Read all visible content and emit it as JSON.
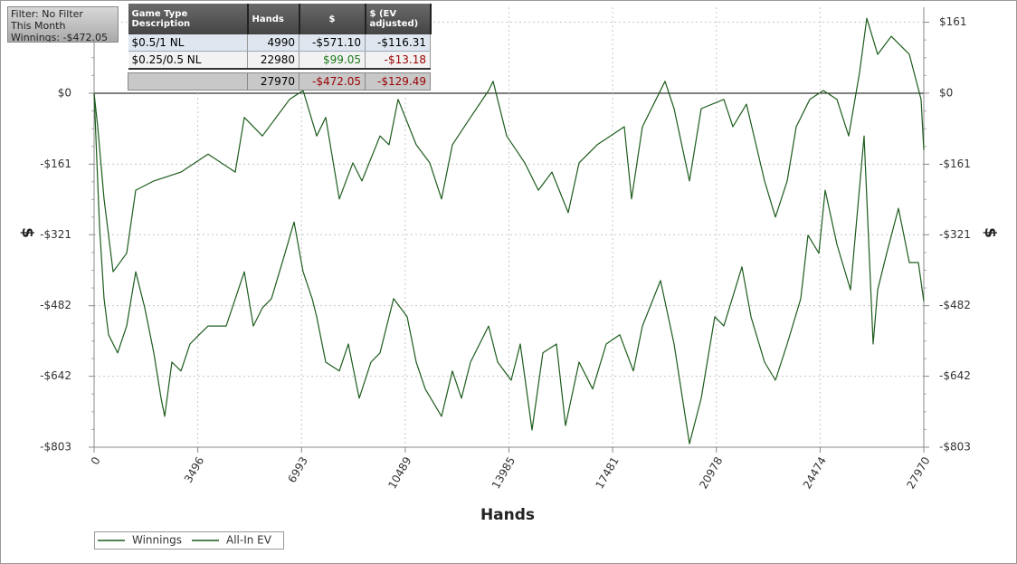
{
  "filter_box": {
    "lines": [
      "Filter: No Filter",
      "This Month",
      "Winnings: -$472.05"
    ]
  },
  "table": {
    "columns": [
      "Game Type Description",
      "Hands",
      "$",
      "$ (EV adjusted)"
    ],
    "rows": [
      [
        "$0.5/1 NL",
        "4990",
        "-$571.10",
        "-$116.31"
      ],
      [
        "$0.25/0.5 NL",
        "22980",
        "$99.05",
        "-$13.18"
      ]
    ],
    "total": [
      "27970",
      "-$472.05",
      "-$129.49"
    ]
  },
  "chart_data": {
    "type": "line",
    "x_label": "Hands",
    "y_label": "$",
    "y2_label": "$",
    "grid": true,
    "legend": "bottom-left",
    "xlim": [
      0,
      27970
    ],
    "xticks": [
      0,
      3496,
      6993,
      10489,
      13985,
      17481,
      20978,
      24474,
      27970
    ],
    "ylim": [
      -803,
      195
    ],
    "yticks": [
      {
        "value": -803,
        "label": "-$803"
      },
      {
        "value": -642,
        "label": "-$642"
      },
      {
        "value": -482,
        "label": "-$482"
      },
      {
        "value": -321,
        "label": "-$321"
      },
      {
        "value": -161,
        "label": "-$161"
      },
      {
        "value": 0,
        "label": "$0"
      },
      {
        "value": 161,
        "label": "$161"
      }
    ],
    "series": [
      {
        "name": "Winnings",
        "color": "#1c5c1c",
        "x": [
          0,
          183,
          336,
          488,
          793,
          1098,
          1403,
          1708,
          2013,
          2257,
          2379,
          2623,
          2928,
          3233,
          3538,
          3843,
          4453,
          5063,
          5368,
          5673,
          5978,
          6436,
          6741,
          7046,
          7351,
          7504,
          7809,
          8266,
          8571,
          8937,
          9334,
          9639,
          10096,
          10554,
          10859,
          11164,
          11713,
          12079,
          12384,
          12689,
          13299,
          13604,
          14061,
          14366,
          14763,
          15129,
          15586,
          15891,
          16349,
          16806,
          17264,
          17721,
          18179,
          18484,
          19094,
          19552,
          20070,
          20467,
          20924,
          21229,
          21839,
          22144,
          22602,
          22968,
          23364,
          23822,
          24066,
          24432,
          24646,
          25042,
          25500,
          25957,
          26262,
          26414,
          26719,
          27116,
          27482,
          27787,
          27970
        ],
        "values": [
          0,
          -302,
          -466,
          -548,
          -589,
          -528,
          -405,
          -487,
          -589,
          -692,
          -733,
          -610,
          -630,
          -569,
          -548,
          -528,
          -528,
          -405,
          -528,
          -487,
          -466,
          -363,
          -292,
          -405,
          -466,
          -507,
          -610,
          -630,
          -569,
          -692,
          -610,
          -589,
          -466,
          -507,
          -610,
          -671,
          -733,
          -630,
          -692,
          -610,
          -528,
          -610,
          -651,
          -569,
          -764,
          -589,
          -569,
          -754,
          -610,
          -671,
          -569,
          -548,
          -630,
          -528,
          -425,
          -569,
          -795,
          -692,
          -507,
          -528,
          -394,
          -507,
          -610,
          -651,
          -569,
          -466,
          -322,
          -363,
          -220,
          -343,
          -446,
          -97,
          -569,
          -446,
          -363,
          -261,
          -384,
          -384,
          -472
        ]
      },
      {
        "name": "All-In EV",
        "color": "#1c5c1c",
        "x": [
          0,
          122,
          336,
          641,
          1098,
          1403,
          2013,
          2928,
          3843,
          4758,
          5063,
          5673,
          6588,
          7046,
          7504,
          7809,
          8266,
          8724,
          9029,
          9639,
          9944,
          10249,
          10859,
          11316,
          11713,
          12079,
          12689,
          13299,
          13451,
          13909,
          14519,
          14976,
          15434,
          15983,
          16349,
          16959,
          17874,
          18118,
          18484,
          19247,
          19552,
          20070,
          20467,
          21229,
          21534,
          21992,
          22602,
          22968,
          23364,
          23669,
          24127,
          24585,
          25042,
          25439,
          25805,
          26049,
          26414,
          26872,
          27482,
          27878,
          27970
        ],
        "values": [
          0,
          -76,
          -240,
          -405,
          -363,
          -220,
          -199,
          -179,
          -138,
          -179,
          -55,
          -97,
          -14,
          6,
          -97,
          -55,
          -240,
          -158,
          -199,
          -97,
          -117,
          -14,
          -117,
          -158,
          -240,
          -117,
          -55,
          6,
          27,
          -97,
          -158,
          -220,
          -179,
          -271,
          -158,
          -117,
          -76,
          -240,
          -76,
          27,
          -35,
          -199,
          -35,
          -14,
          -76,
          -25,
          -199,
          -281,
          -199,
          -76,
          -14,
          6,
          -14,
          -97,
          47,
          170,
          88,
          129,
          88,
          -14,
          -129
        ]
      }
    ]
  }
}
